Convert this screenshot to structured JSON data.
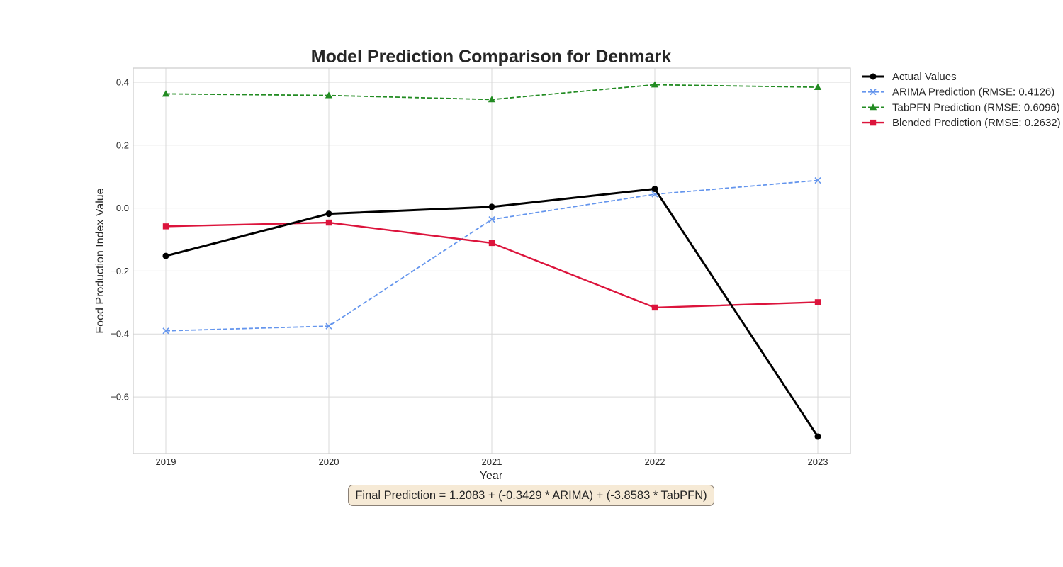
{
  "chart_data": {
    "type": "line",
    "title": "Model Prediction Comparison for Denmark",
    "xlabel": "Year",
    "ylabel": "Food Production Index Value",
    "x": [
      2019,
      2020,
      2021,
      2022,
      2023
    ],
    "xticks": [
      "2019",
      "2020",
      "2021",
      "2022",
      "2023"
    ],
    "yticks": [
      0.4,
      0.2,
      0.0,
      -0.2,
      -0.4,
      -0.6
    ],
    "ytick_labels": [
      "0.4",
      "0.2",
      "0.0",
      "−0.2",
      "−0.4",
      "−0.6"
    ],
    "ylim": [
      -0.78,
      0.445
    ],
    "grid": true,
    "legend_position": "outside-top-right",
    "series": [
      {
        "name": "Actual Values",
        "color": "#000000",
        "style": "solid",
        "marker": "circle",
        "x": [
          2019,
          2020,
          2021,
          2022,
          2023
        ],
        "values": [
          -0.152,
          -0.018,
          0.004,
          0.061,
          -0.726
        ]
      },
      {
        "name": "ARIMA Prediction (RMSE: 0.4126)",
        "color": "#6495ed",
        "style": "dashed",
        "marker": "x",
        "x": [
          2019,
          2020,
          2021,
          2022,
          2023
        ],
        "values": [
          -0.39,
          -0.375,
          -0.036,
          0.044,
          0.088
        ]
      },
      {
        "name": "TabPFN Prediction (RMSE: 0.6096)",
        "color": "#228b22",
        "style": "dashed",
        "marker": "triangle",
        "x": [
          2019,
          2020,
          2021,
          2022,
          2023
        ],
        "values": [
          0.363,
          0.358,
          0.345,
          0.392,
          0.384
        ]
      },
      {
        "name": "Blended Prediction (RMSE: 0.2632)",
        "color": "#dc143c",
        "style": "solid",
        "marker": "square",
        "x": [
          2019,
          2020,
          2021,
          2022,
          2023
        ],
        "values": [
          -0.058,
          -0.046,
          -0.111,
          -0.316,
          -0.299
        ]
      }
    ],
    "annotation": "Final Prediction = 1.2083 + (-0.3429 * ARIMA) + (-3.8583 * TabPFN)"
  }
}
